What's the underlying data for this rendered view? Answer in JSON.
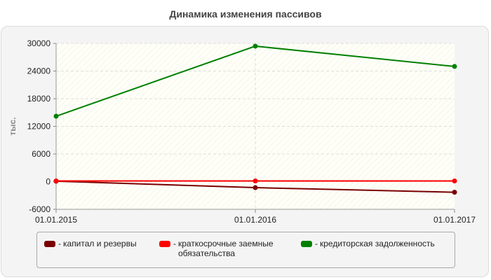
{
  "chart_data": {
    "type": "line",
    "title": "Динамика изменения пассивов",
    "xlabel": "",
    "ylabel": "тыс.",
    "categories": [
      "01.01.2015",
      "01.01.2016",
      "01.01.2017"
    ],
    "ylim": [
      -6000,
      30000
    ],
    "yticks": [
      -6000,
      0,
      6000,
      12000,
      18000,
      24000,
      30000
    ],
    "grid": true,
    "legend_position": "bottom",
    "series": [
      {
        "name": "капитал и резервы",
        "color": "#7a0000",
        "values": [
          100,
          -1300,
          -2300
        ]
      },
      {
        "name": "краткосрочные заемные обязательства",
        "color": "#ff0000",
        "values": [
          150,
          150,
          150
        ]
      },
      {
        "name": "кредиторская задолженность",
        "color": "#008000",
        "values": [
          14200,
          29400,
          25000
        ]
      }
    ]
  },
  "legend": {
    "dash": "-",
    "items": [
      {
        "label": "капитал и резервы",
        "color": "#7a0000"
      },
      {
        "label": "краткосрочные заемные обязательства",
        "color": "#ff0000"
      },
      {
        "label": "кредиторская задолженность",
        "color": "#008000"
      }
    ]
  }
}
